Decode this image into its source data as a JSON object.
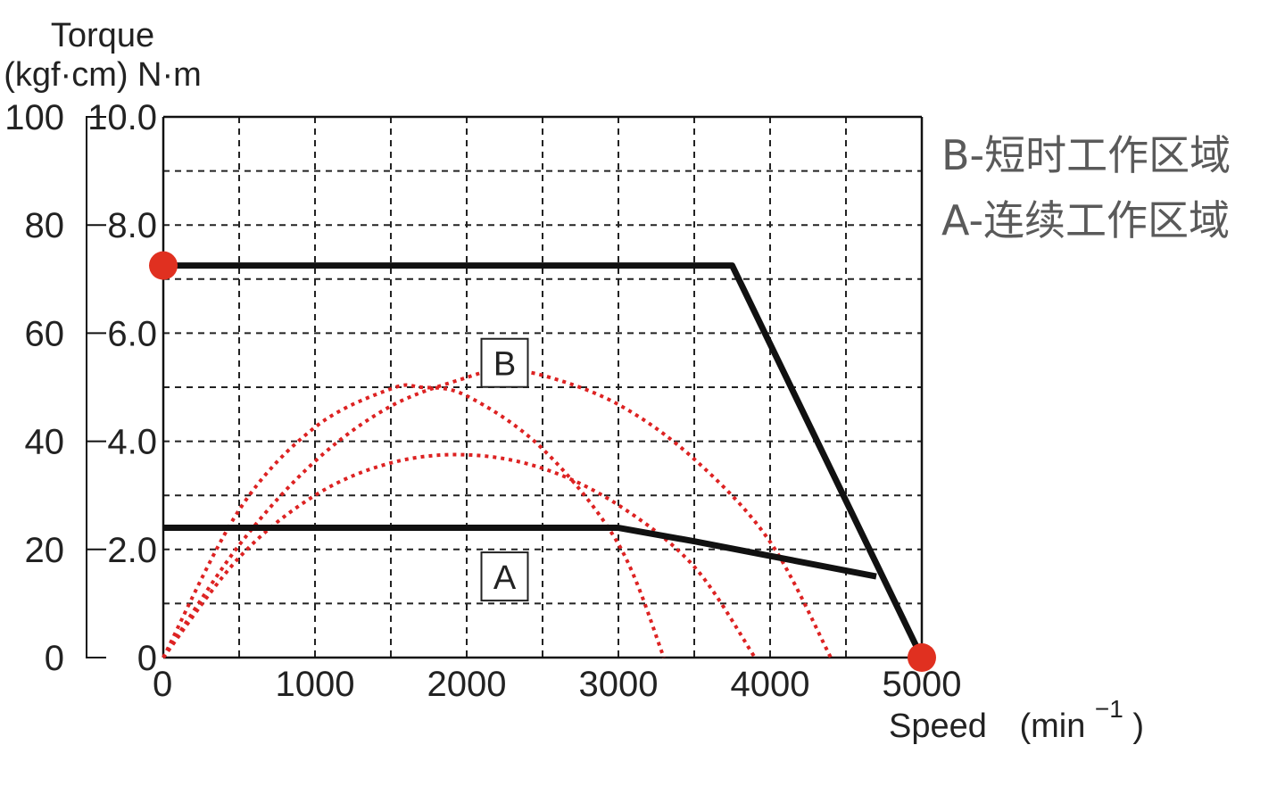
{
  "chart_data": {
    "type": "line",
    "ylabel": "Torque",
    "ylabel_unit": "(kgf·cm) N·m",
    "xlabel": "Speed",
    "xlabel_unit": "(min",
    "xlabel_exp": "−1",
    "xlabel_close": ")",
    "xlim": [
      0,
      5000
    ],
    "ylim": [
      0,
      10
    ],
    "x_ticks": [
      {
        "value": 0,
        "label": "0"
      },
      {
        "value": 1000,
        "label": "1000"
      },
      {
        "value": 2000,
        "label": "2000"
      },
      {
        "value": 3000,
        "label": "3000"
      },
      {
        "value": 4000,
        "label": "4000"
      },
      {
        "value": 5000,
        "label": "5000"
      }
    ],
    "y_ticks_nm": [
      {
        "value": 0,
        "label": "0"
      },
      {
        "value": 2,
        "label": "2.0"
      },
      {
        "value": 4,
        "label": "4.0"
      },
      {
        "value": 6,
        "label": "6.0"
      },
      {
        "value": 8,
        "label": "8.0"
      },
      {
        "value": 10,
        "label": "10.0"
      }
    ],
    "y_ticks_kgfcm": [
      {
        "value": 0,
        "label": "0"
      },
      {
        "value": 2,
        "label": "20"
      },
      {
        "value": 4,
        "label": "40"
      },
      {
        "value": 6,
        "label": "60"
      },
      {
        "value": 8,
        "label": "80"
      },
      {
        "value": 10,
        "label": "100"
      }
    ],
    "grid": true,
    "grid_style": "dashed",
    "series": [
      {
        "name": "B",
        "color": "#111111",
        "style": "solid",
        "x": [
          0,
          3750,
          5000
        ],
        "y": [
          7.25,
          7.25,
          0
        ]
      },
      {
        "name": "A",
        "color": "#111111",
        "style": "solid",
        "x": [
          0,
          3000,
          3500,
          4700
        ],
        "y": [
          2.4,
          2.4,
          2.15,
          1.5
        ]
      },
      {
        "color": "#dd2222",
        "style": "dotted",
        "x": [
          0,
          500,
          1000,
          1500,
          1700,
          2000,
          2500,
          3000,
          3300
        ],
        "y": [
          0,
          2.73,
          4.26,
          4.97,
          5.0,
          4.84,
          3.86,
          2.1,
          0
        ]
      },
      {
        "color": "#dd2222",
        "style": "dotted",
        "x": [
          0,
          500,
          1000,
          1500,
          2000,
          2200,
          2500,
          3000,
          3500,
          4000,
          4400
        ],
        "y": [
          0,
          2.08,
          3.63,
          4.65,
          5.18,
          5.3,
          5.22,
          4.68,
          3.67,
          2.14,
          0
        ]
      },
      {
        "color": "#dd2222",
        "style": "dotted",
        "x": [
          0,
          500,
          1000,
          1500,
          2000,
          2500,
          3000,
          3500,
          3900
        ],
        "y": [
          0,
          1.85,
          3.0,
          3.6,
          3.75,
          3.5,
          2.82,
          1.68,
          0
        ]
      }
    ],
    "markers": [
      {
        "x": 0,
        "y": 7.25,
        "color": "#e03020"
      },
      {
        "x": 5000,
        "y": 0,
        "color": "#e03020"
      }
    ],
    "annotations": [
      {
        "text": "B",
        "x": 2250,
        "y": 5.45
      },
      {
        "text": "A",
        "x": 2250,
        "y": 1.5
      }
    ]
  },
  "legend": {
    "lines": [
      "B-短时工作区域",
      "A-连续工作区域"
    ]
  }
}
